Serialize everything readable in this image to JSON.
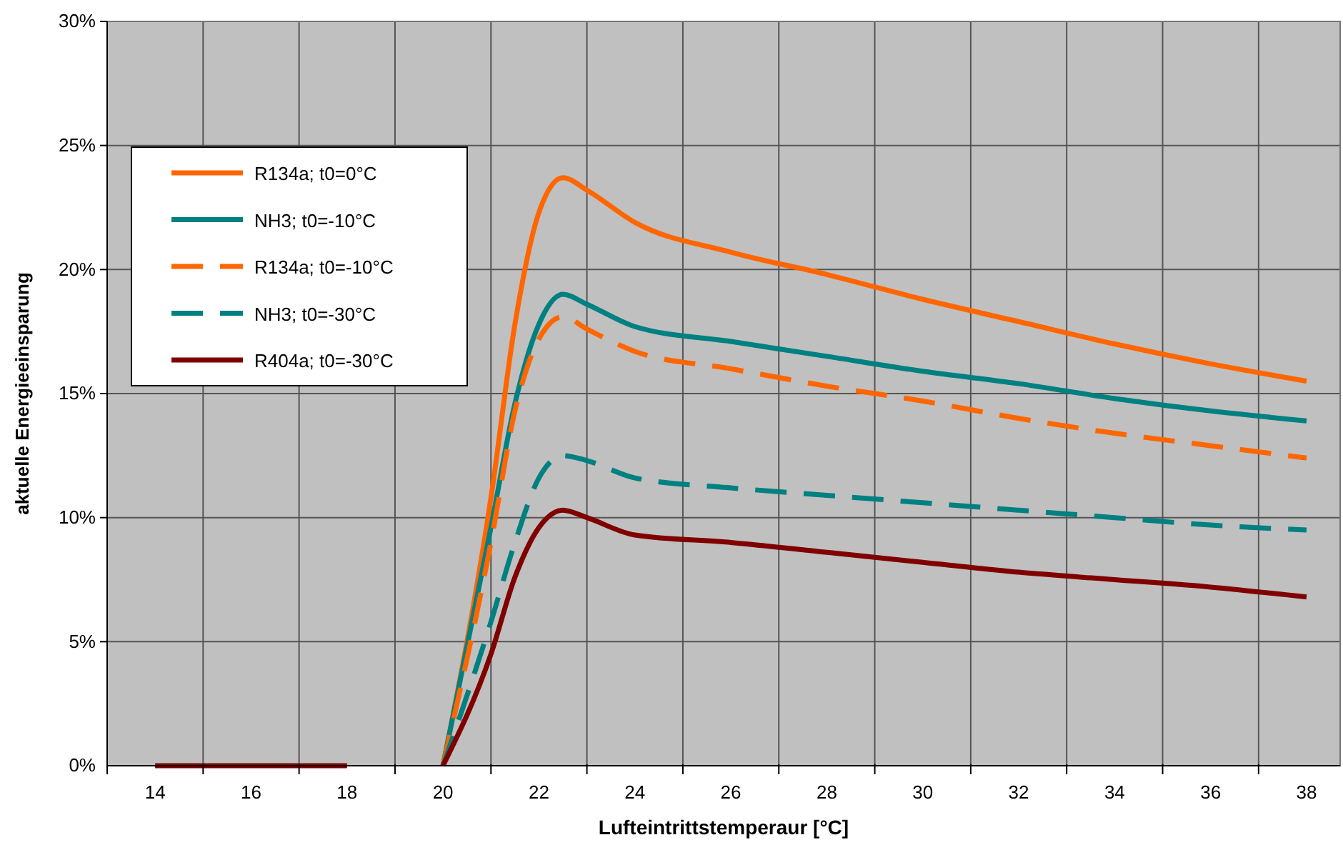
{
  "chart_data": {
    "type": "line",
    "xlabel": "Lufteintrittstemperaur [°C]",
    "ylabel": "aktuelle Energieeinsparung",
    "x": [
      14,
      15,
      16,
      17,
      18,
      19,
      20,
      21,
      21.5,
      22,
      22.5,
      23,
      24,
      26,
      28,
      30,
      32,
      34,
      36,
      38
    ],
    "xlim": [
      13,
      38.7
    ],
    "xticks": [
      {
        "value": 13,
        "label": null
      },
      14,
      {
        "value": 15,
        "label": null
      },
      16,
      {
        "value": 17,
        "label": null
      },
      18,
      {
        "value": 19,
        "label": null
      },
      20,
      {
        "value": 21,
        "label": null
      },
      22,
      {
        "value": 23,
        "label": null
      },
      24,
      {
        "value": 25,
        "label": null
      },
      26,
      {
        "value": 27,
        "label": null
      },
      28,
      {
        "value": 29,
        "label": null
      },
      30,
      {
        "value": 31,
        "label": null
      },
      32,
      {
        "value": 33,
        "label": null
      },
      34,
      {
        "value": 35,
        "label": null
      },
      36,
      {
        "value": 37,
        "label": null
      },
      38
    ],
    "ylim": [
      0,
      30
    ],
    "yticks": [
      {
        "value": 0,
        "label": "0%"
      },
      {
        "value": 5,
        "label": "5%"
      },
      {
        "value": 10,
        "label": "10%"
      },
      {
        "value": 15,
        "label": "15%"
      },
      {
        "value": 20,
        "label": "20%"
      },
      {
        "value": 25,
        "label": "25%"
      },
      {
        "value": 30,
        "label": "30%"
      }
    ],
    "grid": true,
    "legend": "top left",
    "series": [
      {
        "name": "R134a; t0=0°C",
        "color": "#ff6600",
        "line_style": "solid",
        "values": [
          null,
          null,
          null,
          null,
          null,
          null,
          0,
          10.8,
          17.8,
          22.3,
          23.7,
          23.2,
          21.9,
          20.7,
          19.8,
          18.8,
          17.9,
          17.0,
          16.2,
          15.5
        ]
      },
      {
        "name": "NH3; t0=-10°C",
        "color": "#008080",
        "line_style": "solid",
        "values": [
          null,
          null,
          null,
          null,
          null,
          null,
          0,
          9.6,
          14.6,
          17.8,
          19.0,
          18.6,
          17.7,
          17.1,
          16.5,
          15.9,
          15.4,
          14.8,
          14.3,
          13.9
        ]
      },
      {
        "name": "R134a; t0=-10°C",
        "color": "#ff6600",
        "line_style": "dashed",
        "values": [
          null,
          null,
          null,
          null,
          null,
          null,
          0,
          9.0,
          14.3,
          17.2,
          18.1,
          17.6,
          16.7,
          16.0,
          15.3,
          14.7,
          14.0,
          13.4,
          12.9,
          12.4
        ]
      },
      {
        "name": "NH3; t0=-30°C",
        "color": "#008080",
        "line_style": "dashed",
        "values": [
          null,
          null,
          null,
          null,
          null,
          null,
          0,
          5.8,
          9.0,
          11.6,
          12.5,
          12.3,
          11.6,
          11.2,
          10.9,
          10.6,
          10.3,
          10.0,
          9.7,
          9.5
        ]
      },
      {
        "name": "R404a; t0=-30°C",
        "color": "#800000",
        "line_style": "solid",
        "values": [
          0,
          0,
          0,
          0,
          0,
          null,
          0,
          4.5,
          7.6,
          9.6,
          10.3,
          10.0,
          9.3,
          9.0,
          8.6,
          8.2,
          7.8,
          7.5,
          7.2,
          6.8
        ]
      }
    ]
  }
}
